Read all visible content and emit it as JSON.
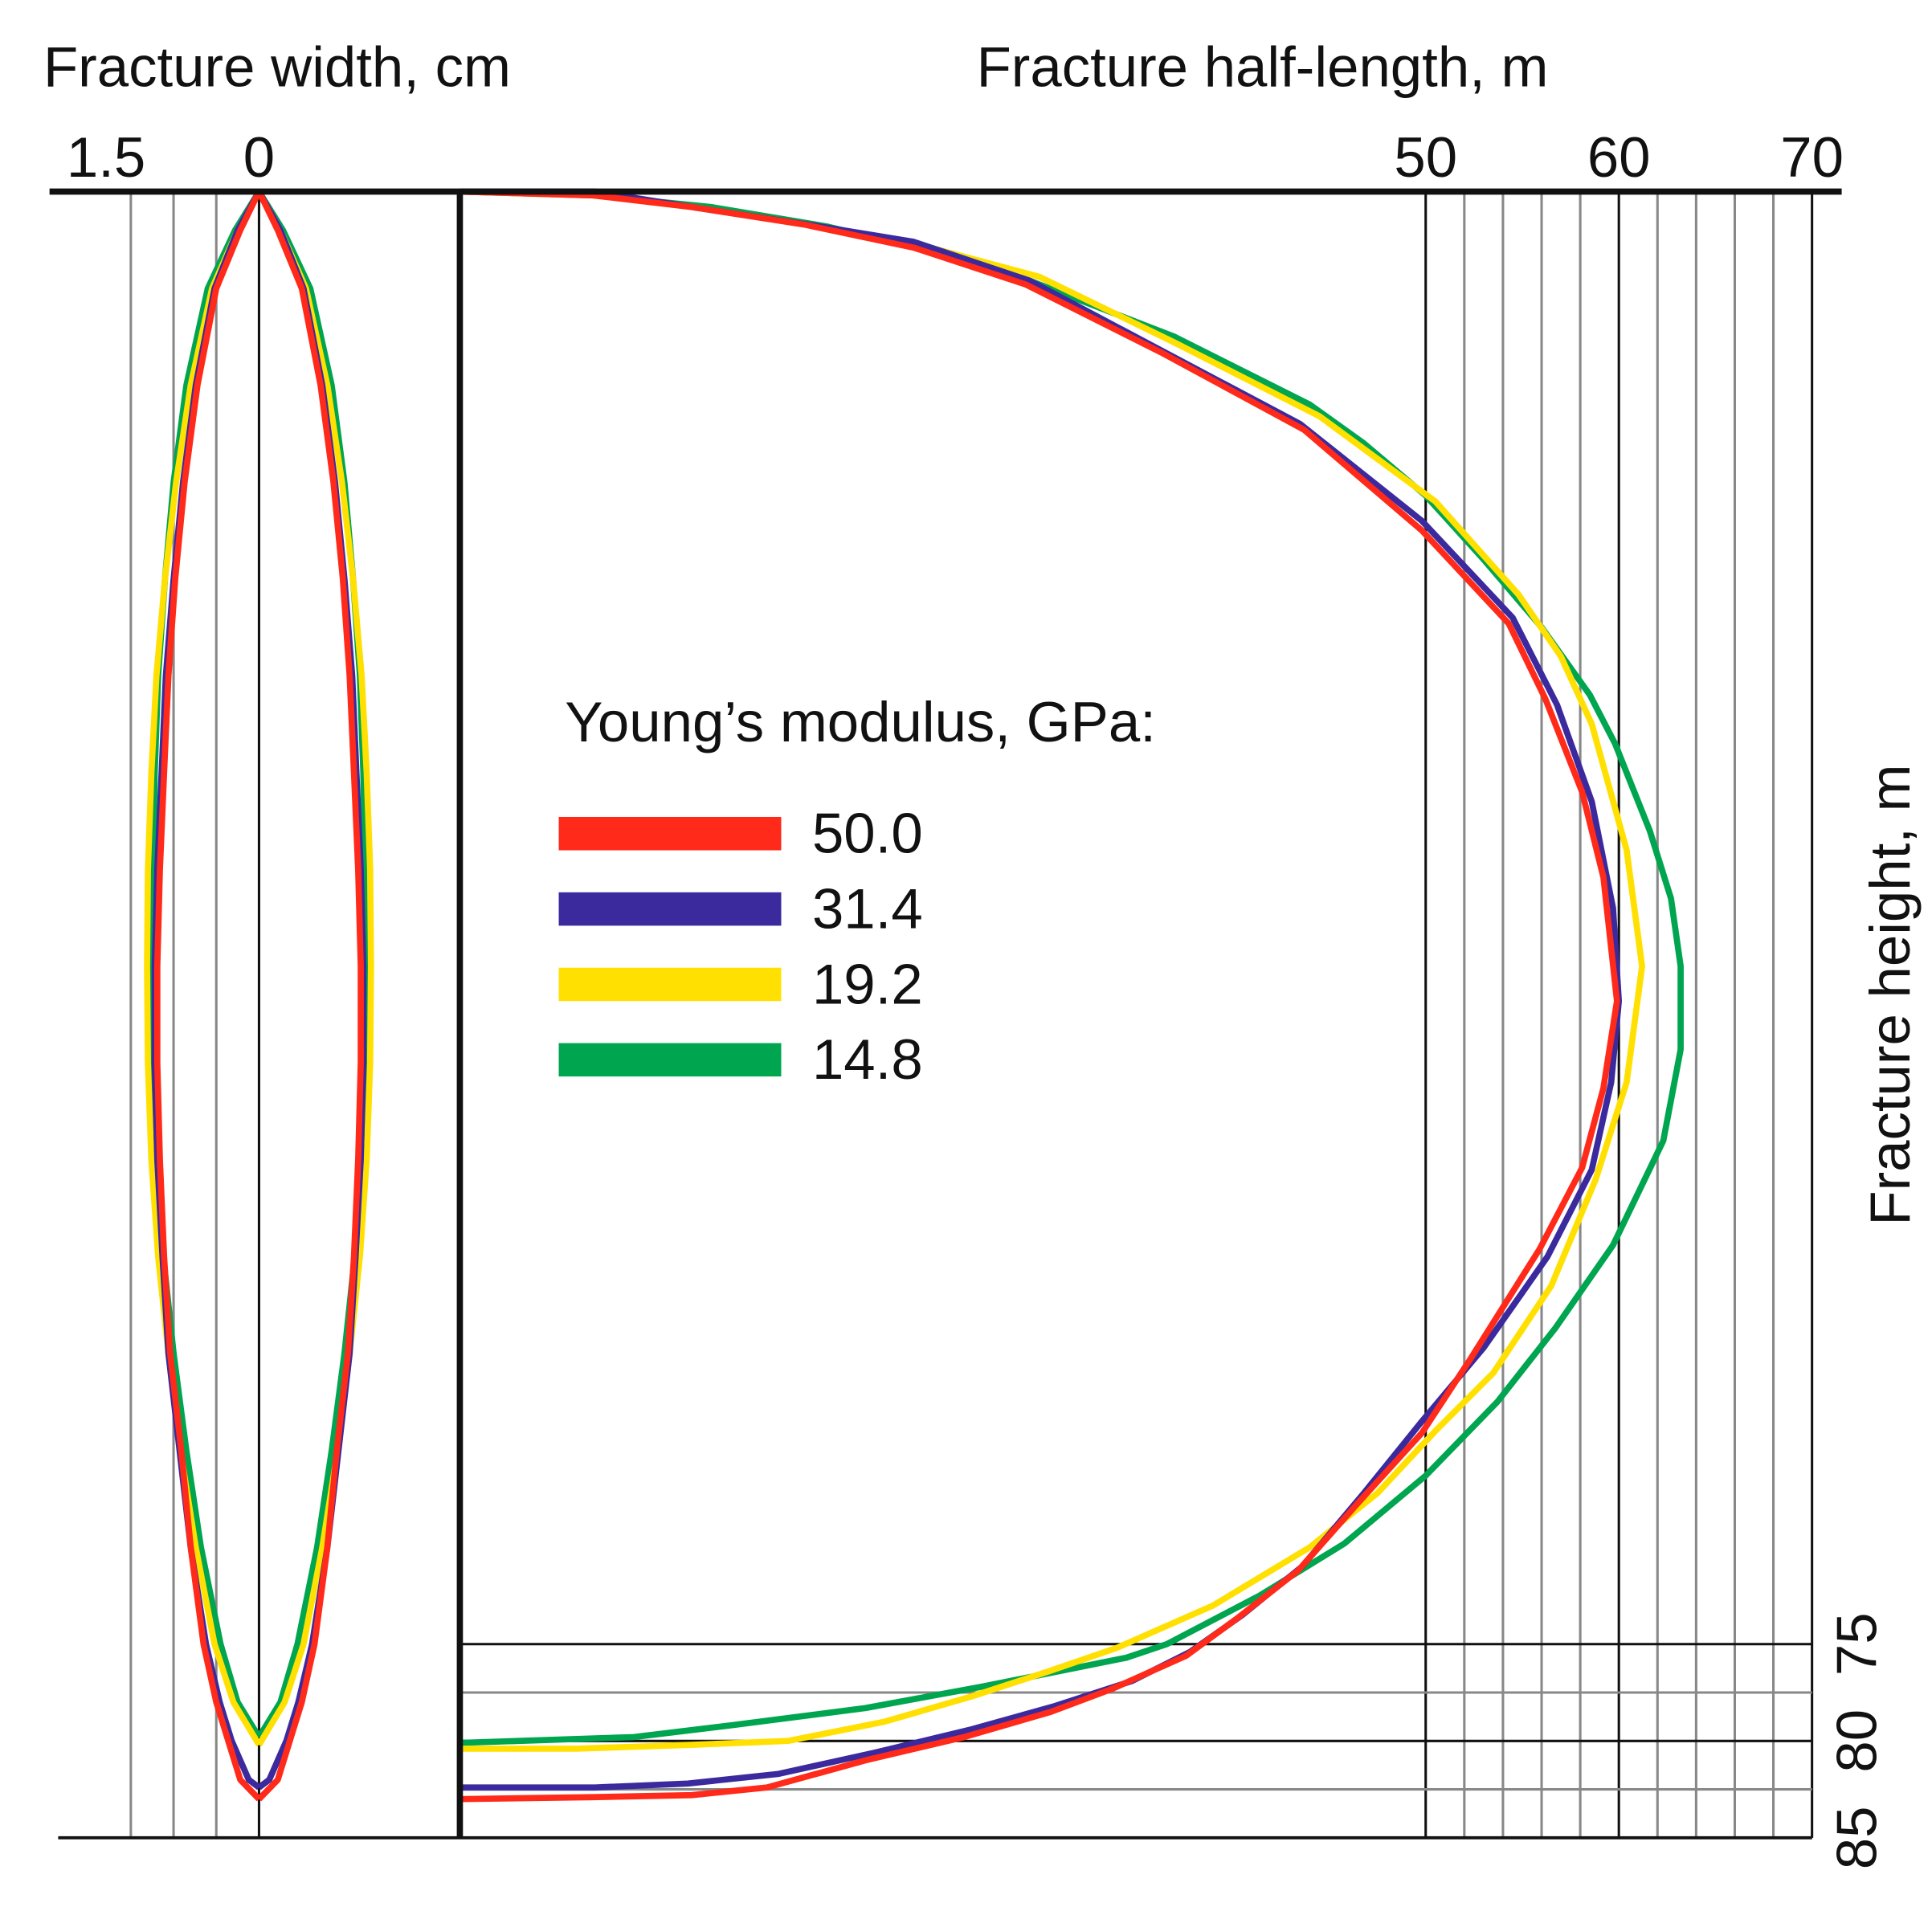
{
  "chart_data": [
    {
      "type": "line",
      "xlabel": "Fracture width, cm",
      "xlim": [
        2.35,
        -2.35
      ],
      "xticks": [
        1.5,
        0
      ],
      "xgrid_minor": [
        1,
        0.5
      ],
      "ylim": [
        0,
        85
      ],
      "series": [
        {
          "color": "#ff2a1a",
          "y": [
            0,
            2,
            5,
            10,
            15,
            20,
            25,
            30,
            35,
            40,
            45,
            50,
            55,
            60,
            65,
            70,
            75,
            78,
            80,
            82,
            83
          ],
          "values": [
            0,
            0.22,
            0.5,
            0.72,
            0.87,
            0.98,
            1.06,
            1.11,
            1.16,
            1.19,
            1.19,
            1.16,
            1.11,
            1.04,
            0.91,
            0.8,
            0.65,
            0.5,
            0.36,
            0.22,
            0
          ]
        },
        {
          "color": "#3b2a9e",
          "y": [
            0,
            2,
            5,
            10,
            15,
            20,
            25,
            30,
            35,
            40,
            45,
            50,
            55,
            60,
            65,
            70,
            75,
            78,
            80,
            82,
            82.4
          ],
          "values": [
            0,
            0.25,
            0.52,
            0.74,
            0.89,
            1.0,
            1.09,
            1.14,
            1.19,
            1.22,
            1.22,
            1.19,
            1.13,
            1.06,
            0.93,
            0.8,
            0.62,
            0.46,
            0.32,
            0.12,
            0
          ]
        },
        {
          "color": "#ffe000",
          "y": [
            0,
            2,
            5,
            10,
            15,
            20,
            25,
            30,
            35,
            40,
            45,
            50,
            55,
            60,
            65,
            70,
            75,
            78,
            80.2
          ],
          "values": [
            0,
            0.25,
            0.55,
            0.8,
            0.97,
            1.1,
            1.2,
            1.26,
            1.3,
            1.31,
            1.3,
            1.26,
            1.18,
            1.06,
            0.92,
            0.74,
            0.52,
            0.3,
            0
          ]
        },
        {
          "color": "#00a550",
          "y": [
            0,
            2,
            5,
            10,
            15,
            20,
            25,
            30,
            35,
            40,
            45,
            50,
            55,
            60,
            65,
            70,
            75,
            78,
            79.8
          ],
          "values": [
            0,
            0.28,
            0.6,
            0.85,
            1.0,
            1.1,
            1.18,
            1.22,
            1.24,
            1.25,
            1.24,
            1.2,
            1.12,
            1.0,
            0.85,
            0.68,
            0.45,
            0.25,
            0
          ]
        }
      ]
    },
    {
      "type": "line",
      "xlabel": "Fracture half-length, m",
      "ylabel": "Fracture height, m",
      "xlim": [
        0,
        70
      ],
      "xticks": [
        50,
        60,
        70
      ],
      "xgrid_minor": [
        52,
        54,
        56,
        58,
        62,
        64,
        66,
        68
      ],
      "ylim": [
        0,
        85
      ],
      "yticks": [
        75,
        80,
        85
      ],
      "ygrid_minor": [
        77.5,
        82.5
      ],
      "legend_title": "Young’s modulus, GPa:",
      "series": [
        {
          "name": "50.0",
          "color": "#ff2a1a",
          "y": [
            0,
            0.2,
            0.8,
            1.7,
            2.9,
            4.8,
            8.3,
            12.3,
            17.5,
            22.3,
            26.2,
            31.0,
            35.4,
            41.8,
            46.3,
            50.4,
            54.6,
            60.3,
            64.1,
            67.6,
            71.2,
            73.7,
            75.6,
            77.3,
            78.5,
            79.8,
            81.0,
            82.4,
            82.8,
            82.9,
            83.0
          ],
          "values": [
            0,
            6.9,
            12.0,
            17.8,
            23.5,
            29.3,
            36.3,
            43.7,
            49.8,
            54.3,
            56.2,
            58.1,
            59.2,
            59.9,
            59.2,
            58.1,
            55.9,
            52.3,
            49.8,
            46.6,
            43.4,
            40.2,
            37.6,
            33.8,
            30.6,
            26.1,
            21.0,
            15.9,
            12.0,
            6.9,
            0
          ]
        },
        {
          "name": "31.4",
          "color": "#3b2a9e",
          "y": [
            0,
            0,
            0.8,
            1.7,
            2.6,
            4.6,
            8.3,
            12.0,
            17.0,
            22.0,
            26.5,
            31.5,
            37,
            41.8,
            46,
            50.5,
            55,
            59.7,
            63.5,
            67.2,
            71,
            73.5,
            75.4,
            76.9,
            78.2,
            79.4,
            80.6,
            81.7,
            82.2,
            82.4,
            82.4
          ],
          "values": [
            0,
            7,
            12,
            18,
            23.5,
            29.5,
            36.5,
            43.5,
            49.8,
            54.5,
            56.8,
            58.6,
            59.7,
            60,
            59.6,
            58.6,
            56.3,
            53,
            49.8,
            46.8,
            43.6,
            40.5,
            37.8,
            34.8,
            30.8,
            26.5,
            21.5,
            16.5,
            11.8,
            7,
            0
          ]
        },
        {
          "name": "19.2",
          "color": "#ffe000",
          "y": [
            0,
            0.2,
            0.8,
            1.7,
            2.8,
            4.4,
            7.8,
            11.6,
            16,
            20.8,
            24,
            27.5,
            34,
            40,
            46,
            51,
            56.5,
            61,
            64,
            67.2,
            70,
            73,
            75.2,
            76.4,
            77.7,
            79,
            80,
            80.2,
            80.4,
            80.4
          ],
          "values": [
            0,
            7,
            12,
            18,
            24,
            30,
            37,
            44.5,
            50.5,
            54.8,
            57,
            58.6,
            60.4,
            61.2,
            60.4,
            58.8,
            56.5,
            53.5,
            50.5,
            47.5,
            44,
            39,
            34,
            30.5,
            26.5,
            22,
            17,
            12,
            6,
            0
          ]
        },
        {
          "name": "14.8",
          "color": "#00a550",
          "y": [
            0,
            0.2,
            0.8,
            1.8,
            3.0,
            4.6,
            7.5,
            11,
            13,
            15.7,
            19,
            22.5,
            26,
            28.5,
            33,
            36.5,
            40,
            44.3,
            49,
            54.4,
            58.7,
            62.5,
            66.3,
            69.8,
            72.5,
            75,
            75.7,
            77.2,
            78.3,
            79.2,
            79.8,
            80.1
          ],
          "values": [
            0,
            7,
            13,
            19,
            24,
            29.5,
            37,
            44,
            46.8,
            50,
            53,
            56,
            58.5,
            59.8,
            61.6,
            62.7,
            63.2,
            63.2,
            62.3,
            59.7,
            56.7,
            53.7,
            50,
            45.8,
            41.4,
            36.6,
            34.5,
            27,
            21,
            14,
            9,
            0
          ]
        }
      ]
    }
  ]
}
